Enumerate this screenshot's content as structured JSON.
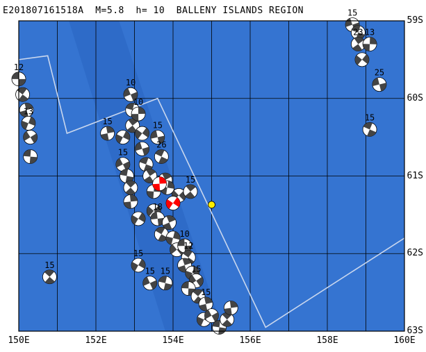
{
  "title": "E201807161518A  M=5.8  h= 10  BALLENY ISLANDS REGION",
  "colors": {
    "ocean": "#3574d1",
    "deep": "#2a66c2",
    "grid": "#000000",
    "plate_boundary": "#c9d7ee",
    "main_event": "#ff0000",
    "epicenter": "#ffee00",
    "beachball_dark": "#444444",
    "beachball_light": "#ffffff"
  },
  "chart_data": {
    "type": "map",
    "lon_range": [
      150,
      160
    ],
    "lat_range": [
      -63,
      -59
    ],
    "x_ticks": [
      "150E",
      "152E",
      "154E",
      "156E",
      "158E",
      "160E"
    ],
    "y_ticks": [
      "59S",
      "60S",
      "61S",
      "62S",
      "63S"
    ],
    "grid": true,
    "epicenter": {
      "lon": 155.0,
      "lat": -61.37
    },
    "plate_boundary": [
      [
        150,
        -59.5
      ],
      [
        150.75,
        -59.45
      ],
      [
        151.25,
        -60.45
      ],
      [
        153.6,
        -60.0
      ],
      [
        156.4,
        -62.95
      ],
      [
        160,
        -61.8
      ]
    ],
    "events": [
      {
        "lon": 150.0,
        "lat": -59.75,
        "depth": "12",
        "main": false
      },
      {
        "lon": 150.1,
        "lat": -59.95,
        "depth": "",
        "main": false
      },
      {
        "lon": 150.2,
        "lat": -60.15,
        "depth": "",
        "main": false
      },
      {
        "lon": 150.25,
        "lat": -60.32,
        "depth": "13",
        "main": false
      },
      {
        "lon": 150.3,
        "lat": -60.5,
        "depth": "",
        "main": false
      },
      {
        "lon": 150.3,
        "lat": -60.75,
        "depth": "",
        "main": false
      },
      {
        "lon": 150.8,
        "lat": -62.3,
        "depth": "15",
        "main": false
      },
      {
        "lon": 152.3,
        "lat": -60.45,
        "depth": "15",
        "main": false
      },
      {
        "lon": 152.7,
        "lat": -60.5,
        "depth": "",
        "main": false
      },
      {
        "lon": 152.7,
        "lat": -60.85,
        "depth": "15",
        "main": false
      },
      {
        "lon": 152.8,
        "lat": -61.0,
        "depth": "",
        "main": false
      },
      {
        "lon": 152.9,
        "lat": -61.15,
        "depth": "",
        "main": false
      },
      {
        "lon": 152.9,
        "lat": -61.33,
        "depth": "",
        "main": false
      },
      {
        "lon": 153.1,
        "lat": -61.55,
        "depth": "",
        "main": false
      },
      {
        "lon": 152.9,
        "lat": -59.95,
        "depth": "10",
        "main": false
      },
      {
        "lon": 152.95,
        "lat": -60.15,
        "depth": "",
        "main": false
      },
      {
        "lon": 152.95,
        "lat": -60.35,
        "depth": "",
        "main": false
      },
      {
        "lon": 153.1,
        "lat": -60.2,
        "depth": "10",
        "main": false
      },
      {
        "lon": 153.2,
        "lat": -60.45,
        "depth": "",
        "main": false
      },
      {
        "lon": 153.2,
        "lat": -60.65,
        "depth": "",
        "main": false
      },
      {
        "lon": 153.3,
        "lat": -60.85,
        "depth": "",
        "main": false
      },
      {
        "lon": 153.4,
        "lat": -61.0,
        "depth": "",
        "main": false
      },
      {
        "lon": 153.5,
        "lat": -61.2,
        "depth": "",
        "main": false
      },
      {
        "lon": 153.5,
        "lat": -61.45,
        "depth": "",
        "main": false
      },
      {
        "lon": 153.6,
        "lat": -60.5,
        "depth": "15",
        "main": false
      },
      {
        "lon": 153.7,
        "lat": -60.75,
        "depth": "26",
        "main": false
      },
      {
        "lon": 153.8,
        "lat": -61.05,
        "depth": "",
        "main": false
      },
      {
        "lon": 153.85,
        "lat": -61.15,
        "depth": "",
        "main": false
      },
      {
        "lon": 154.15,
        "lat": -61.25,
        "depth": "",
        "main": false
      },
      {
        "lon": 153.6,
        "lat": -61.55,
        "depth": "18",
        "main": false
      },
      {
        "lon": 153.7,
        "lat": -61.75,
        "depth": "",
        "main": false
      },
      {
        "lon": 153.9,
        "lat": -61.6,
        "depth": "",
        "main": false
      },
      {
        "lon": 154.0,
        "lat": -61.8,
        "depth": "",
        "main": false
      },
      {
        "lon": 154.1,
        "lat": -61.95,
        "depth": "",
        "main": false
      },
      {
        "lon": 154.3,
        "lat": -61.9,
        "depth": "10",
        "main": false
      },
      {
        "lon": 154.4,
        "lat": -62.05,
        "depth": "12",
        "main": false
      },
      {
        "lon": 154.3,
        "lat": -62.15,
        "depth": "",
        "main": false
      },
      {
        "lon": 154.5,
        "lat": -62.25,
        "depth": "",
        "main": false
      },
      {
        "lon": 154.6,
        "lat": -62.35,
        "depth": "15",
        "main": false
      },
      {
        "lon": 154.4,
        "lat": -62.45,
        "depth": "",
        "main": false
      },
      {
        "lon": 154.65,
        "lat": -62.55,
        "depth": "",
        "main": false
      },
      {
        "lon": 154.85,
        "lat": -62.65,
        "depth": "15",
        "main": false
      },
      {
        "lon": 154.8,
        "lat": -62.85,
        "depth": "",
        "main": false
      },
      {
        "lon": 155.0,
        "lat": -62.8,
        "depth": "",
        "main": false
      },
      {
        "lon": 155.2,
        "lat": -62.95,
        "depth": "",
        "main": false
      },
      {
        "lon": 155.4,
        "lat": -62.85,
        "depth": "",
        "main": false
      },
      {
        "lon": 155.5,
        "lat": -62.7,
        "depth": "",
        "main": false
      },
      {
        "lon": 153.1,
        "lat": -62.15,
        "depth": "15",
        "main": false
      },
      {
        "lon": 153.4,
        "lat": -62.38,
        "depth": "15",
        "main": false
      },
      {
        "lon": 153.8,
        "lat": -62.38,
        "depth": "15",
        "main": false
      },
      {
        "lon": 154.45,
        "lat": -61.2,
        "depth": "15",
        "main": false
      },
      {
        "lon": 153.65,
        "lat": -61.1,
        "depth": "",
        "main": true
      },
      {
        "lon": 154.0,
        "lat": -61.35,
        "depth": "",
        "main": true
      },
      {
        "lon": 158.65,
        "lat": -59.05,
        "depth": "15",
        "main": false
      },
      {
        "lon": 158.8,
        "lat": -59.15,
        "depth": "",
        "main": false
      },
      {
        "lon": 158.8,
        "lat": -59.3,
        "depth": "23",
        "main": false
      },
      {
        "lon": 159.1,
        "lat": -59.3,
        "depth": "13",
        "main": false
      },
      {
        "lon": 158.9,
        "lat": -59.5,
        "depth": "",
        "main": false
      },
      {
        "lon": 159.35,
        "lat": -59.82,
        "depth": "25",
        "main": false
      },
      {
        "lon": 159.1,
        "lat": -60.4,
        "depth": "15",
        "main": false
      }
    ]
  }
}
